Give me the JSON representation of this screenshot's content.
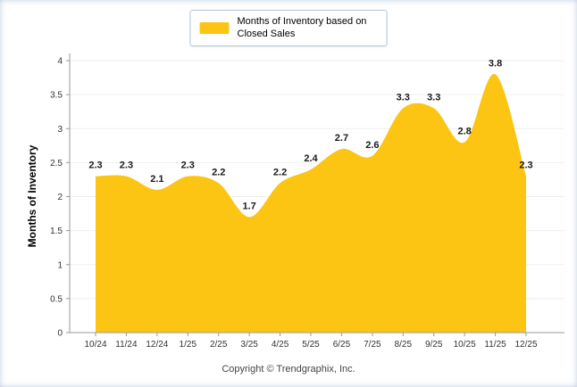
{
  "chart_data": {
    "type": "area",
    "legend": "Months of Inventory based on Closed Sales",
    "ylabel": "Months of Inventory",
    "xlabel": "",
    "footer": "Copyright © Trendgraphix, Inc.",
    "categories": [
      "10/24",
      "11/24",
      "12/24",
      "1/25",
      "2/25",
      "3/25",
      "4/25",
      "5/25",
      "6/25",
      "7/25",
      "8/25",
      "9/25",
      "10/25",
      "11/25",
      "12/25"
    ],
    "values": [
      2.3,
      2.3,
      2.1,
      2.3,
      2.2,
      1.7,
      2.2,
      2.4,
      2.7,
      2.6,
      3.3,
      3.3,
      2.8,
      3.8,
      2.3
    ],
    "ylim": [
      0,
      4
    ],
    "ytick_step": 0.5,
    "yticks": [
      "0",
      "0.5",
      "1",
      "1.5",
      "2",
      "2.5",
      "3",
      "3.5",
      "4"
    ],
    "grid": true,
    "legend_position": "top-center",
    "colors": {
      "area": "#FCC513",
      "label_text": "#1a1a1a",
      "axis": "#999999",
      "grid": "#efefef",
      "tick_text": "#333333",
      "legend_border": "#b3c9d9"
    }
  }
}
